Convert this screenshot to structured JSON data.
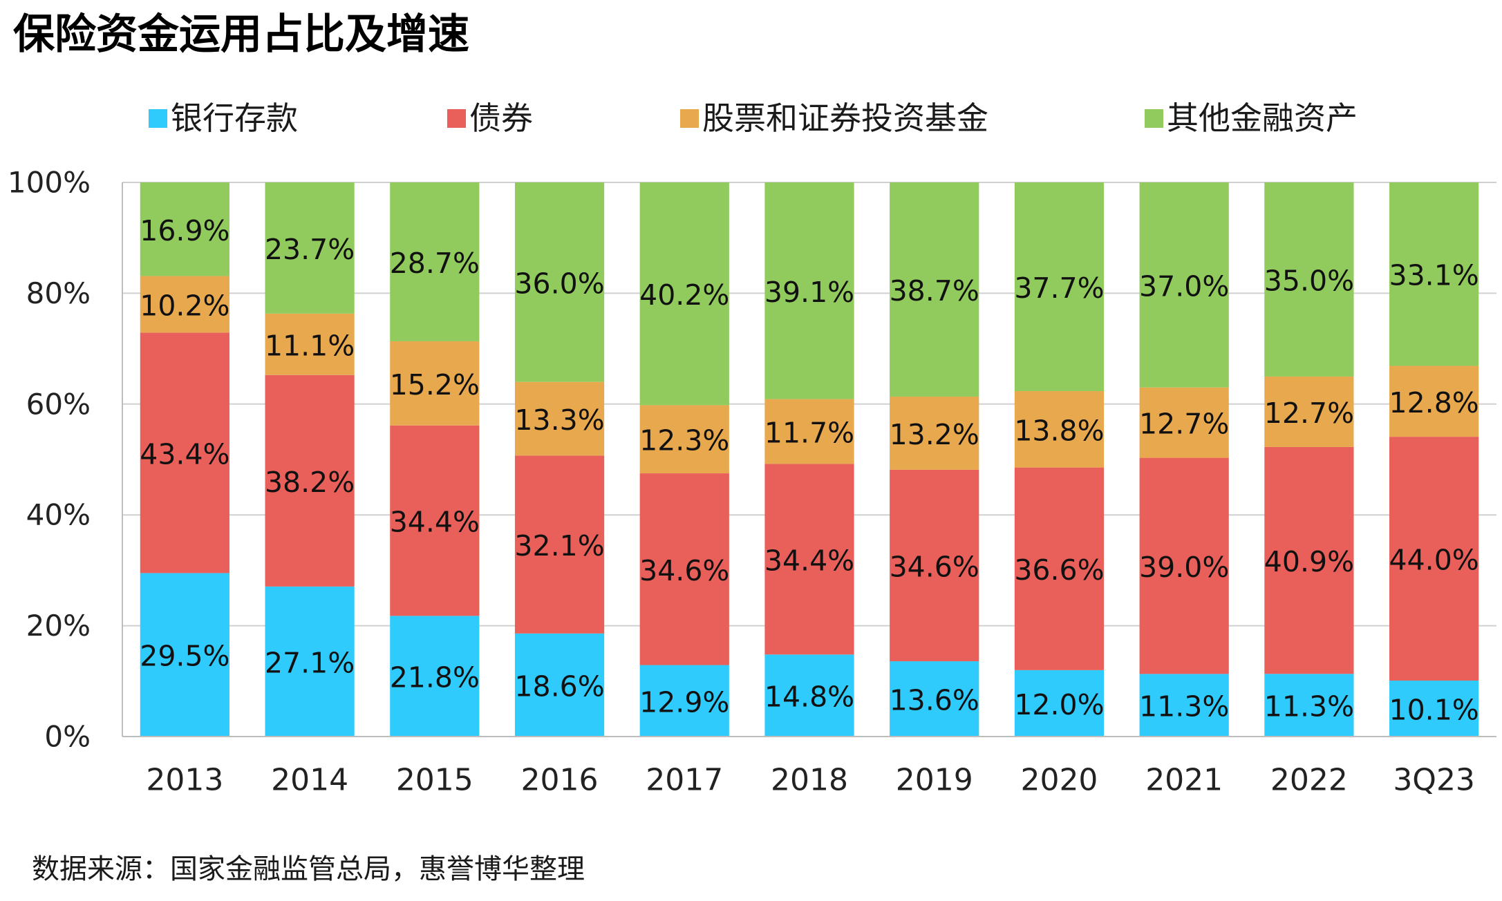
{
  "colors": {
    "grid": "#D0D0D0",
    "axis": "#BDBDBD",
    "text": "#1A1A1A"
  },
  "footer": {
    "source": "数据来源：国家金融监管总局，惠誉博华整理"
  },
  "chart_data": {
    "type": "bar",
    "stacked": true,
    "normalized": true,
    "title": "保险资金运用占比及增速",
    "xlabel": "",
    "ylabel": "",
    "ylim": [
      0,
      100
    ],
    "grid": true,
    "y_ticks": [
      0,
      20,
      40,
      60,
      80,
      100
    ],
    "y_tick_labels": [
      "0%",
      "20%",
      "40%",
      "60%",
      "80%",
      "100%"
    ],
    "value_unit": "%",
    "categories": [
      "2013",
      "2014",
      "2015",
      "2016",
      "2017",
      "2018",
      "2019",
      "2020",
      "2021",
      "2022",
      "3Q23"
    ],
    "series": [
      {
        "name": "银行存款",
        "color": "#2FCBFD",
        "values": [
          29.5,
          27.1,
          21.8,
          18.6,
          12.9,
          14.8,
          13.6,
          12.0,
          11.3,
          11.3,
          10.1
        ]
      },
      {
        "name": "债券",
        "color": "#E9605B",
        "values": [
          43.4,
          38.2,
          34.4,
          32.1,
          34.6,
          34.4,
          34.6,
          36.6,
          39.0,
          40.9,
          44.0
        ]
      },
      {
        "name": "股票和证券投资基金",
        "color": "#E8A84E",
        "values": [
          10.2,
          11.1,
          15.2,
          13.3,
          12.3,
          11.7,
          13.2,
          13.8,
          12.7,
          12.7,
          12.8
        ]
      },
      {
        "name": "其他金融资产",
        "color": "#92CB5D",
        "values": [
          16.9,
          23.7,
          28.7,
          36.0,
          40.2,
          39.1,
          38.7,
          37.7,
          37.0,
          35.0,
          33.1
        ]
      }
    ]
  }
}
